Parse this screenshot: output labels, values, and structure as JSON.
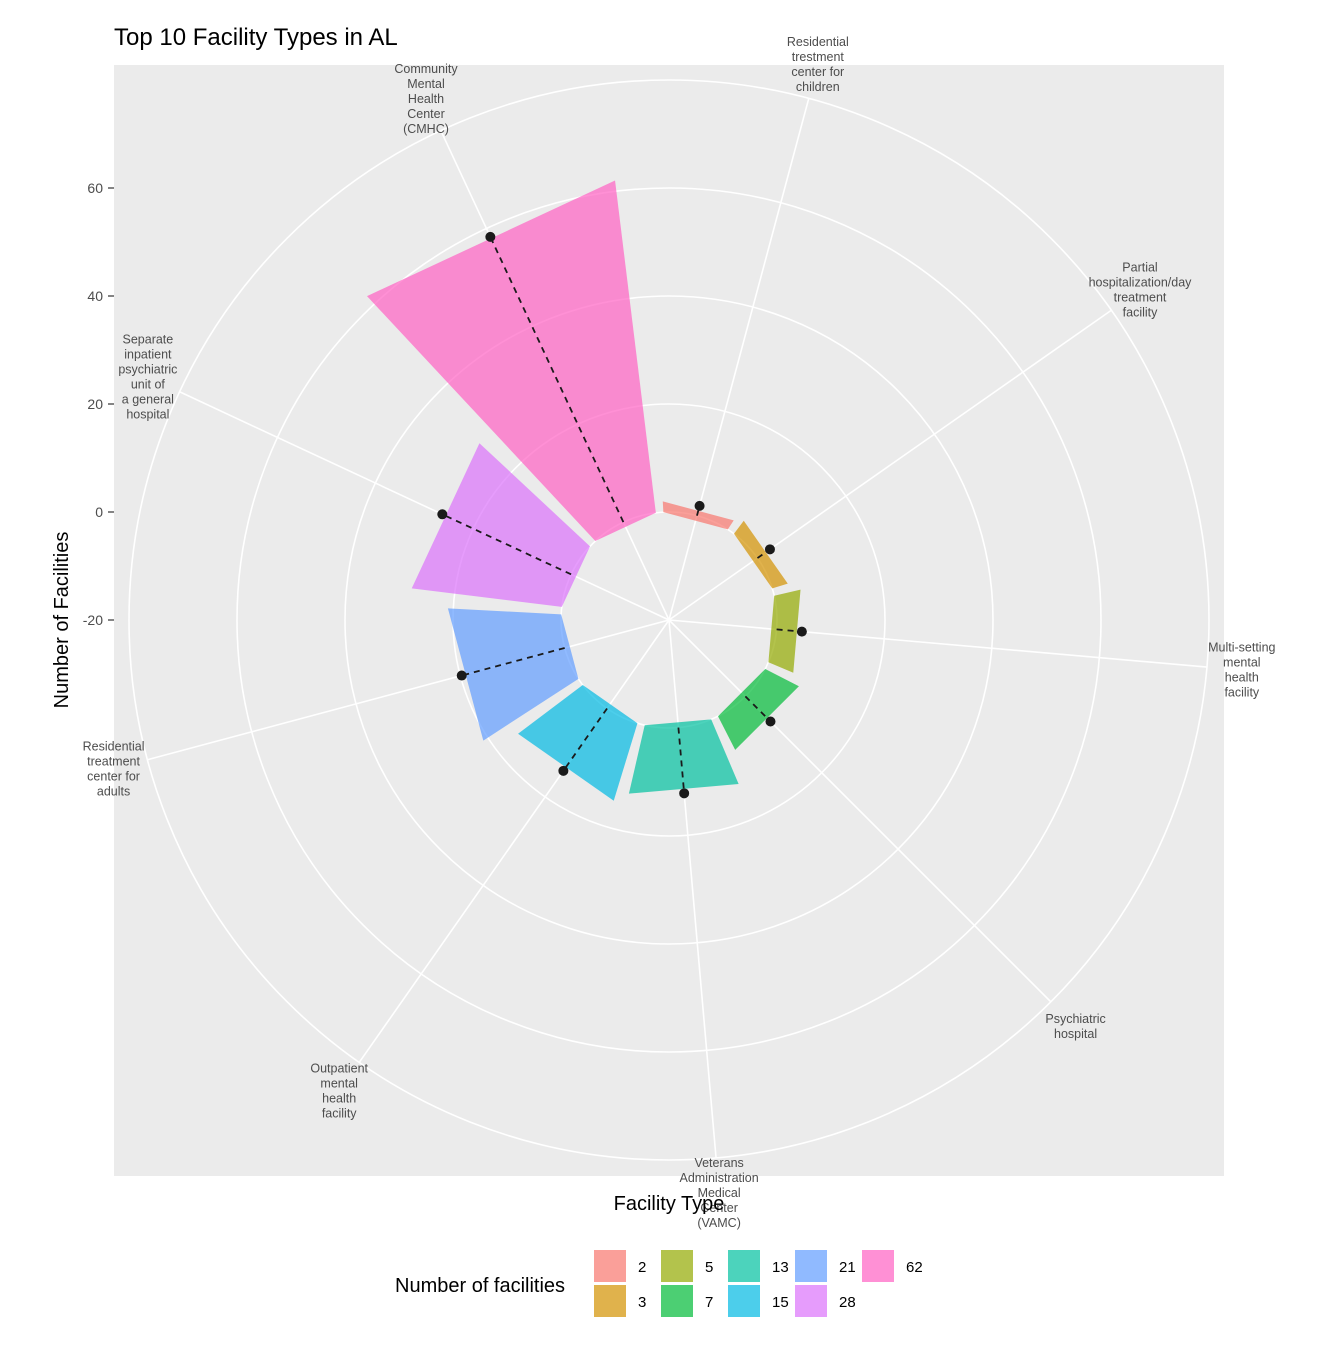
{
  "chart_data": {
    "type": "bar",
    "coord": "polar",
    "title": "Top 10 Facility Types in AL",
    "xlabel": "Facility Type",
    "ylabel": "Number of Facilities",
    "ylim": [
      -20,
      80
    ],
    "yticks": [
      -20,
      0,
      20,
      40,
      60
    ],
    "grid": true,
    "categories": [
      "Residential trestment center for children",
      "Partial hospitalization/day treatment facility",
      "Multi-setting mental health facility",
      "Psychiatric hospital",
      "Veterans Administration Medical Center (VAMC)",
      "Outpatient mental health facility",
      "Residential treatment center for adults",
      "Separate inpatient psychiatric unit of a general hospital",
      "Community Mental Health Center (CMHC)"
    ],
    "category_label_lines": [
      [
        "Residential",
        "trestment",
        "center for",
        "children"
      ],
      [
        "Partial",
        "hospitalization/day",
        "treatment",
        "facility"
      ],
      [
        "Multi-setting",
        "mental",
        "health",
        "facility"
      ],
      [
        "Psychiatric",
        "hospital"
      ],
      [
        "Veterans",
        "Administration",
        "Medical",
        "Center",
        "(VAMC)"
      ],
      [
        "Outpatient",
        "mental",
        "health",
        "facility"
      ],
      [
        "Residential",
        "treatment",
        "center for",
        "adults"
      ],
      [
        "Separate",
        "inpatient",
        "psychiatric",
        "unit of",
        "a general",
        "hospital"
      ],
      [
        "Community",
        "Mental",
        "Health",
        "Center",
        "(CMHC)"
      ]
    ],
    "values": [
      2,
      3,
      5,
      7,
      13,
      15,
      21,
      28,
      62
    ],
    "point_values": [
      2,
      3,
      5,
      7,
      13,
      15,
      21,
      28,
      62
    ],
    "colors": {
      "2": "#F8766D",
      "3": "#D39200",
      "5": "#93AA00",
      "7": "#00BA38",
      "13": "#00C19F",
      "15": "#00B9E3",
      "21": "#619CFF",
      "28": "#DB72FB",
      "62": "#FF61C3"
    },
    "legend": {
      "title": "Number of facilities",
      "position": "bottom",
      "entries": [
        "2",
        "3",
        "5",
        "7",
        "13",
        "15",
        "21",
        "28",
        "62"
      ]
    }
  }
}
